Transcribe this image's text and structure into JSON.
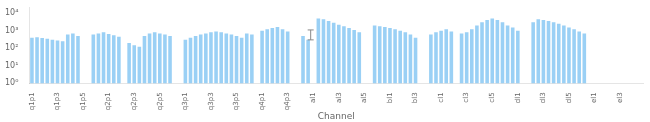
{
  "chart_data": {
    "type": "bar",
    "xlabel": "Channel",
    "categories": [
      "q1p1",
      null,
      null,
      null,
      null,
      "q1p3",
      null,
      null,
      null,
      null,
      "q1p5",
      null,
      null,
      null,
      null,
      "q2p1",
      null,
      null,
      null,
      null,
      "q2p3",
      null,
      null,
      null,
      null,
      "q2p5",
      null,
      null,
      null,
      null,
      "q3p1",
      null,
      null,
      null,
      null,
      "q3p3",
      null,
      null,
      null,
      null,
      "q3p5",
      null,
      null,
      null,
      null,
      "q4p1",
      null,
      null,
      null,
      null,
      "q4p3",
      null,
      null,
      null,
      null,
      "al1",
      null,
      null,
      null,
      null,
      "al3",
      null,
      null,
      null,
      null,
      "al5",
      null,
      null,
      null,
      null,
      "bl1",
      null,
      null,
      null,
      null,
      "bl3",
      null,
      null,
      null,
      null,
      "cl1",
      null,
      null,
      null,
      null,
      "cl3",
      null,
      null,
      null,
      null,
      "cl5",
      null,
      null,
      null,
      null,
      "dl1",
      null,
      null,
      null,
      null,
      "dl3",
      null,
      null,
      null,
      null,
      "dl5",
      null,
      null,
      null,
      null,
      "el1",
      null,
      null,
      null,
      null,
      "el3",
      null,
      null,
      null,
      null
    ],
    "values": [
      400,
      420,
      380,
      350,
      300,
      280,
      250,
      600,
      700,
      500,
      null,
      null,
      600,
      700,
      800,
      650,
      550,
      450,
      null,
      200,
      150,
      120,
      500,
      700,
      800,
      700,
      600,
      500,
      null,
      null,
      300,
      400,
      500,
      600,
      700,
      800,
      900,
      800,
      700,
      600,
      500,
      400,
      700,
      600,
      null,
      1000,
      1200,
      1400,
      1600,
      1200,
      900,
      null,
      null,
      500,
      300,
      null,
      5000,
      4500,
      3500,
      2800,
      2200,
      1800,
      1400,
      1100,
      800,
      null,
      null,
      2000,
      1800,
      1600,
      1400,
      1200,
      1000,
      800,
      600,
      400,
      null,
      null,
      600,
      800,
      1000,
      1200,
      900,
      null,
      700,
      800,
      1200,
      2000,
      3000,
      4000,
      5000,
      4000,
      3000,
      2000,
      1500,
      1000,
      null,
      null,
      3000,
      4500,
      4000,
      3500,
      3000,
      2500,
      2000,
      1500,
      1200,
      900,
      700,
      null,
      null,
      null,
      null,
      null,
      null,
      null,
      null,
      null,
      null,
      null
    ],
    "log": "y",
    "ylim": [
      1,
      20000
    ],
    "yticks": [
      {
        "value": 1,
        "label": "10⁰"
      },
      {
        "value": 10,
        "label": "10¹"
      },
      {
        "value": 100,
        "label": "10²"
      },
      {
        "value": 1000,
        "label": "10³"
      },
      {
        "value": 10000,
        "label": "10⁴"
      }
    ],
    "grid": false,
    "error_bar": {
      "x": 54.5,
      "y": 700,
      "yerr": 400
    }
  }
}
